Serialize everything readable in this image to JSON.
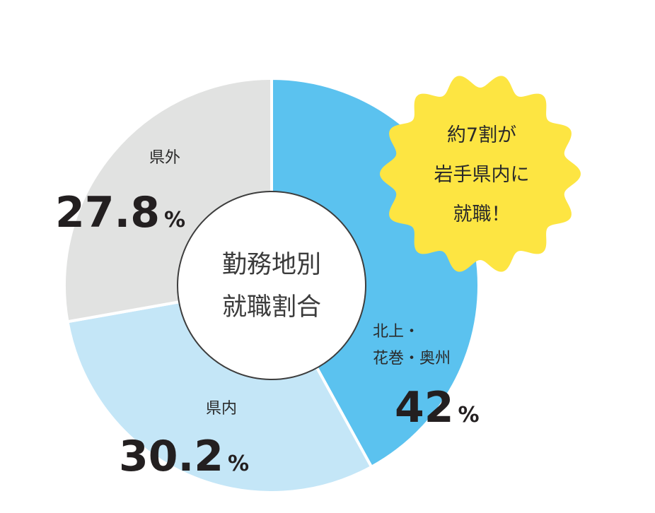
{
  "chart_data": {
    "type": "pie",
    "center_label": [
      "勤務地別",
      "就職割合"
    ],
    "unit": "%",
    "slices": [
      {
        "label_lines": [
          "北上・",
          "花巻・奥州"
        ],
        "value": 42,
        "value_text": "42",
        "color": "#5bc2ef"
      },
      {
        "label_lines": [
          "県内"
        ],
        "value": 30.2,
        "value_text": "30.2",
        "color": "#c4e6f7"
      },
      {
        "label_lines": [
          "県外"
        ],
        "value": 27.8,
        "value_text": "27.8",
        "color": "#e1e2e1"
      }
    ],
    "badge": {
      "lines": [
        "約7割が",
        "岩手県内に",
        "就職！"
      ],
      "color": "#fde542"
    }
  }
}
